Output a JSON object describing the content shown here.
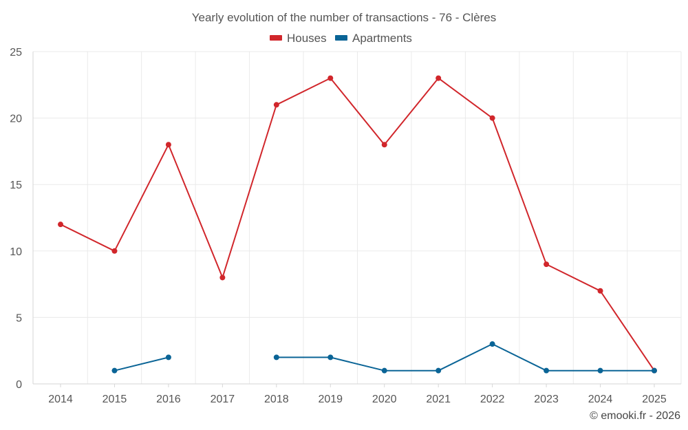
{
  "chart_data": {
    "type": "line",
    "title": "Yearly evolution of the number of transactions - 76 - Clères",
    "xlabel": "",
    "ylabel": "",
    "categories": [
      "2014",
      "2015",
      "2016",
      "2017",
      "2018",
      "2019",
      "2020",
      "2021",
      "2022",
      "2023",
      "2024",
      "2025"
    ],
    "ylim": [
      0,
      25
    ],
    "yticks": [
      0,
      5,
      10,
      15,
      20,
      25
    ],
    "grid": true,
    "legend_position": "top-center",
    "series": [
      {
        "name": "Houses",
        "color": "#d1262b",
        "values": [
          12,
          10,
          18,
          8,
          21,
          23,
          18,
          23,
          20,
          9,
          7,
          1
        ]
      },
      {
        "name": "Apartments",
        "color": "#0a6496",
        "values": [
          null,
          1,
          2,
          null,
          2,
          2,
          1,
          1,
          3,
          1,
          1,
          1
        ]
      }
    ]
  },
  "credit": "© emooki.fr - 2026"
}
